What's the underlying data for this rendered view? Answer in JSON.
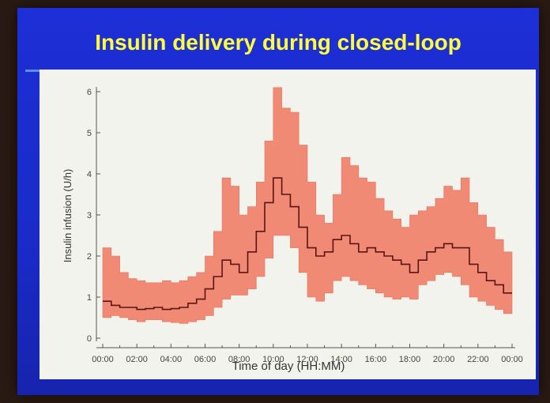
{
  "slide": {
    "title": "Insulin delivery during closed-loop"
  },
  "chart_data": {
    "type": "area",
    "xlabel": "Time of day (HH:MM)",
    "ylabel": "Insulin infusion (U/h)",
    "ylim": [
      0,
      6
    ],
    "yticks": [
      "0",
      "1",
      "2",
      "3",
      "4",
      "5",
      "6"
    ],
    "xlim": [
      0,
      24
    ],
    "xticks": [
      "00:00",
      "02:00",
      "04:00",
      "06:00",
      "08:00",
      "10:00",
      "12:00",
      "14:00",
      "16:00",
      "18:00",
      "20:00",
      "22:00",
      "00:00"
    ],
    "grid": false,
    "colors": {
      "band": "#f08a74",
      "median": "#5a1414",
      "axis": "#555555"
    },
    "x": [
      0.0,
      0.5,
      1.0,
      1.5,
      2.0,
      2.5,
      3.0,
      3.5,
      4.0,
      4.5,
      5.0,
      5.5,
      6.0,
      6.5,
      7.0,
      7.5,
      8.0,
      8.5,
      9.0,
      9.5,
      10.0,
      10.5,
      11.0,
      11.5,
      12.0,
      12.5,
      13.0,
      13.5,
      14.0,
      14.5,
      15.0,
      15.5,
      16.0,
      16.5,
      17.0,
      17.5,
      18.0,
      18.5,
      19.0,
      19.5,
      20.0,
      20.5,
      21.0,
      21.5,
      22.0,
      22.5,
      23.0,
      23.5
    ],
    "series": [
      {
        "role": "upper",
        "values": [
          2.2,
          2.0,
          1.6,
          1.45,
          1.4,
          1.35,
          1.35,
          1.4,
          1.35,
          1.4,
          1.5,
          1.6,
          2.0,
          2.6,
          3.9,
          3.7,
          3.0,
          3.2,
          3.8,
          4.8,
          6.1,
          5.6,
          5.5,
          4.7,
          3.8,
          3.0,
          2.8,
          3.5,
          4.4,
          4.2,
          3.9,
          3.8,
          3.4,
          3.1,
          2.9,
          2.7,
          3.0,
          3.1,
          3.2,
          3.4,
          3.7,
          3.6,
          3.9,
          3.3,
          3.0,
          2.7,
          2.4,
          2.1
        ]
      },
      {
        "role": "median",
        "values": [
          0.9,
          0.8,
          0.75,
          0.75,
          0.7,
          0.72,
          0.75,
          0.7,
          0.72,
          0.75,
          0.85,
          0.95,
          1.2,
          1.5,
          1.9,
          1.8,
          1.6,
          2.1,
          2.6,
          3.3,
          3.9,
          3.5,
          3.2,
          2.7,
          2.2,
          2.0,
          2.1,
          2.4,
          2.5,
          2.3,
          2.1,
          2.2,
          2.1,
          2.0,
          1.9,
          1.8,
          1.6,
          1.9,
          2.1,
          2.2,
          2.3,
          2.2,
          2.2,
          1.8,
          1.6,
          1.4,
          1.3,
          1.1
        ]
      },
      {
        "role": "lower",
        "values": [
          0.5,
          0.55,
          0.5,
          0.45,
          0.4,
          0.45,
          0.45,
          0.4,
          0.38,
          0.36,
          0.4,
          0.45,
          0.55,
          0.75,
          0.95,
          1.05,
          1.05,
          1.2,
          1.5,
          1.95,
          2.5,
          2.5,
          2.2,
          1.6,
          1.0,
          0.9,
          1.1,
          1.4,
          1.5,
          1.4,
          1.3,
          1.2,
          1.1,
          1.0,
          0.95,
          1.0,
          0.95,
          1.3,
          1.4,
          1.55,
          1.6,
          1.5,
          1.3,
          1.0,
          0.9,
          0.8,
          0.7,
          0.6
        ]
      }
    ]
  }
}
